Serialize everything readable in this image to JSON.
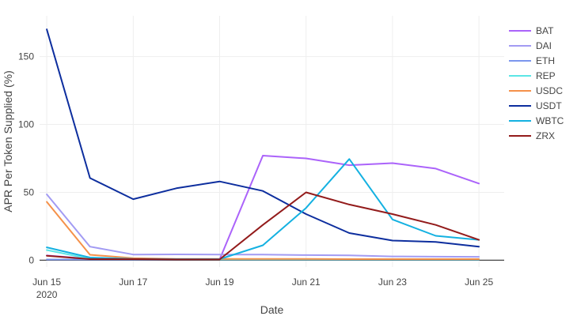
{
  "chart_data": {
    "type": "line",
    "xlabel": "Date",
    "ylabel": "APR Per Token Supplied (%)",
    "x": [
      "2020-06-15",
      "2020-06-16",
      "2020-06-17",
      "2020-06-18",
      "2020-06-19",
      "2020-06-20",
      "2020-06-21",
      "2020-06-22",
      "2020-06-23",
      "2020-06-24",
      "2020-06-25"
    ],
    "x_ticks": [
      {
        "date": "2020-06-15",
        "label": "Jun 15",
        "sublabel": "2020"
      },
      {
        "date": "2020-06-17",
        "label": "Jun 17",
        "sublabel": ""
      },
      {
        "date": "2020-06-19",
        "label": "Jun 19",
        "sublabel": ""
      },
      {
        "date": "2020-06-21",
        "label": "Jun 21",
        "sublabel": ""
      },
      {
        "date": "2020-06-23",
        "label": "Jun 23",
        "sublabel": ""
      },
      {
        "date": "2020-06-25",
        "label": "Jun 25",
        "sublabel": ""
      }
    ],
    "xlim": [
      "2020-06-14T20:00",
      "2020-06-25T14:00"
    ],
    "y_ticks": [
      0,
      50,
      100,
      150
    ],
    "ylim": [
      -5,
      180
    ],
    "grid": true,
    "legend_position": "right",
    "series": [
      {
        "name": "BAT",
        "color": "#ab63fa",
        "values": [
          3.5,
          1.0,
          0.8,
          0.6,
          0.6,
          77,
          75,
          70,
          71.5,
          67.5,
          56.5
        ]
      },
      {
        "name": "DAI",
        "color": "#a29bf3",
        "values": [
          48.5,
          10,
          4.2,
          4.3,
          4.2,
          4.2,
          3.8,
          3.6,
          2.8,
          2.6,
          2.5
        ]
      },
      {
        "name": "ETH",
        "color": "#7b96ee",
        "values": [
          0.5,
          0.5,
          0.5,
          0.5,
          0.5,
          0.5,
          0.5,
          0.5,
          0.5,
          0.5,
          0.5
        ]
      },
      {
        "name": "REP",
        "color": "#5ce6e6",
        "values": [
          7.5,
          1.0,
          0.8,
          0.8,
          0.6,
          0.6,
          0.6,
          0.6,
          0.6,
          0.6,
          0.6
        ]
      },
      {
        "name": "USDC",
        "color": "#f5914a",
        "values": [
          43,
          4,
          1.5,
          1.0,
          1.0,
          1.0,
          1.0,
          0.8,
          0.8,
          0.8,
          0.8
        ]
      },
      {
        "name": "USDT",
        "color": "#0d2e9e",
        "values": [
          170,
          60.5,
          45,
          53,
          58,
          51,
          34,
          20,
          14.5,
          13.5,
          10
        ]
      },
      {
        "name": "WBTC",
        "color": "#14b1e1",
        "values": [
          9.5,
          2.0,
          1.0,
          0.8,
          0.8,
          11,
          38.5,
          74.5,
          30,
          18,
          15
        ]
      },
      {
        "name": "ZRX",
        "color": "#931b1b",
        "values": [
          3.3,
          0.8,
          0.8,
          0.6,
          0.6,
          26,
          50,
          41,
          34,
          26,
          15
        ]
      }
    ]
  }
}
